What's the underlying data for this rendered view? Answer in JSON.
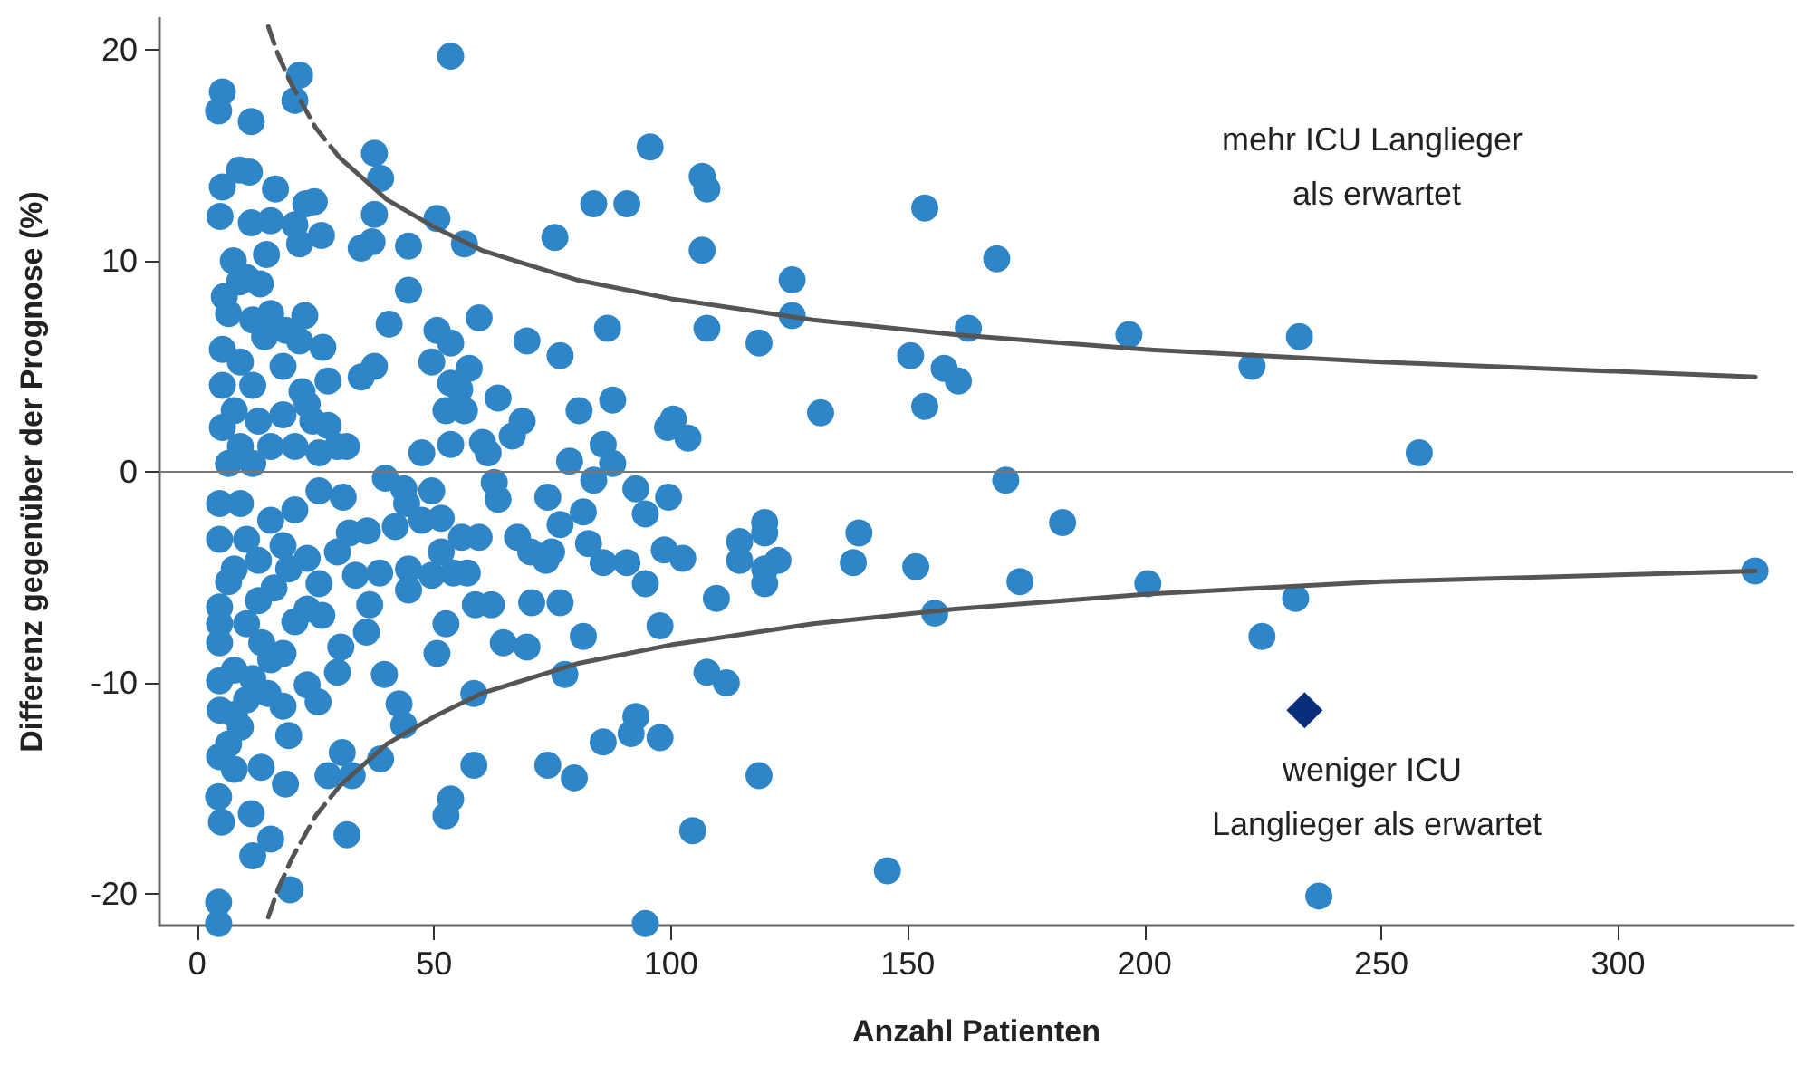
{
  "chart_data": {
    "type": "scatter",
    "xlabel": "Anzahl Patienten",
    "ylabel": "Differenz gegenüber der Prognose (%)",
    "xlim": [
      -8,
      337
    ],
    "ylim": [
      -21.5,
      21.5
    ],
    "xticks": [
      0,
      50,
      100,
      150,
      200,
      250,
      300
    ],
    "yticks": [
      -20,
      -10,
      0,
      10,
      20
    ],
    "grid": false,
    "marker": "circle",
    "ref_lines": [
      {
        "axis": "y",
        "value": 0,
        "color": "#777777"
      }
    ],
    "annotations": [
      "mehr ICU Langlieger als erwartet",
      "weniger ICU Langlieger als erwartet"
    ],
    "series": [
      {
        "color": "#2e86c8",
        "x": [
          95.6,
          106.6,
          107.6,
          83.7,
          90.7,
          153.6,
          75.5,
          106.6,
          168.8,
          125.6,
          125.6,
          86.6,
          107.6,
          162.8,
          196.7,
          76.6,
          118.6,
          150.6,
          157.7,
          160.7,
          153.6,
          80.6,
          87.7,
          131.6,
          100.5,
          99.3,
          103.6,
          85.7,
          87.7,
          78.6,
          170.7,
          83.7,
          74.0,
          92.6,
          99.5,
          94.6,
          81.5,
          76.6,
          119.8,
          119.8,
          139.7,
          182.7,
          82.6,
          74.8,
          73.6,
          114.5,
          114.5,
          85.7,
          90.7,
          98.6,
          102.5,
          119.8,
          122.6,
          119.8,
          138.5,
          151.7,
          173.7,
          200.7,
          76.6,
          94.6,
          109.6,
          155.7,
          97.7,
          81.5,
          77.6,
          107.6,
          111.7,
          92.6,
          91.6,
          97.7,
          85.7,
          74.0,
          79.6,
          118.6,
          104.6,
          145.7,
          94.6,
          232.7,
          222.7,
          258.0,
          328.9,
          231.9,
          224.8,
          236.8,
          53.5,
          21.6,
          20.6,
          5.3,
          4.5,
          11.4,
          37.4,
          38.7,
          37.4,
          50.6,
          56.4,
          8.9,
          11.0,
          5.3,
          16.5,
          4.8,
          11.4,
          15.5,
          22.9,
          24.7,
          20.6,
          21.6,
          26.2,
          34.6,
          36.9,
          44.6,
          7.6,
          14.6,
          44.6,
          13.3,
          5.7,
          8.9,
          22.7,
          40.5,
          50.6,
          53.5,
          59.5,
          69.6,
          26.5,
          21.6,
          49.5,
          57.4,
          37.4,
          34.6,
          27.6,
          53.5,
          55.4,
          63.5,
          68.6,
          66.5,
          52.5,
          56.4,
          27.6,
          47.4,
          53.5,
          60.2,
          61.4,
          31.5,
          25.7,
          18.1,
          22.1,
          39.7,
          43.6,
          49.5,
          44.2,
          62.7,
          63.5,
          41.8,
          47.4,
          51.5,
          51.5,
          55.8,
          59.5,
          67.6,
          70.4,
          35.9,
          33.4,
          38.5,
          44.6,
          44.6,
          49.5,
          54.1,
          57.0,
          58.7,
          62.1,
          70.6,
          52.5,
          50.6,
          64.6,
          69.6,
          36.4,
          35.7,
          30.3,
          29.6,
          39.5,
          42.6,
          43.6,
          38.7,
          58.4,
          58.4,
          53.5,
          52.5,
          30.6,
          27.6,
          32.7,
          31.6,
          18.6,
          13.5,
          19.6,
          15.5,
          11.7,
          11.4,
          4.5,
          4.5,
          5.1,
          4.5,
          7.8,
          9.1,
          4.8,
          10.4,
          19.3,
          23.2,
          25.5,
          18.1,
          14.9,
          20.6,
          18.1,
          15.5,
          4.7,
          4.7,
          7.8,
          11.7,
          13.6,
          6.6,
          4.7,
          10.4,
          12.9,
          16.2,
          23.2,
          25.7,
          26.3,
          29.6,
          23.2,
          32.1,
          30.8,
          25.7,
          20.6,
          15.5,
          9.1,
          4.7,
          4.7,
          10.4,
          18.1,
          7.8,
          12.9,
          19.3,
          4.7,
          7.8,
          6.6,
          4.7,
          5.3,
          6.6,
          10.4,
          11.7,
          15.5,
          14.2,
          9.1,
          5.3,
          11.7,
          7.8,
          5.3,
          12.9,
          18.1,
          23.2,
          9.1,
          15.5,
          20.6,
          6.6,
          11.7,
          18.7,
          24.4,
          29.6
        ],
        "values": [
          15.4,
          14.0,
          13.4,
          12.7,
          12.7,
          12.5,
          11.1,
          10.5,
          10.1,
          9.1,
          7.4,
          6.8,
          6.8,
          6.8,
          6.5,
          5.5,
          6.1,
          5.5,
          4.9,
          4.3,
          3.1,
          2.9,
          3.4,
          2.8,
          2.5,
          2.1,
          1.6,
          1.3,
          0.4,
          0.5,
          -0.4,
          -0.4,
          -1.2,
          -0.8,
          -1.2,
          -2.0,
          -1.9,
          -2.5,
          -2.4,
          -2.9,
          -2.9,
          -2.4,
          -3.4,
          -3.8,
          -4.2,
          -3.3,
          -4.2,
          -4.3,
          -4.3,
          -3.7,
          -4.1,
          -4.6,
          -4.2,
          -5.3,
          -4.3,
          -4.5,
          -5.2,
          -5.3,
          -6.2,
          -5.3,
          -6.0,
          -6.7,
          -7.3,
          -7.8,
          -9.6,
          -9.5,
          -10.0,
          -11.6,
          -12.4,
          -12.6,
          -12.8,
          -13.9,
          -14.5,
          -14.4,
          -17.0,
          -18.9,
          -21.4,
          6.4,
          5.0,
          0.9,
          -4.7,
          -6.0,
          -7.8,
          -20.1,
          19.7,
          18.8,
          17.6,
          18.0,
          17.1,
          16.6,
          15.1,
          13.9,
          12.2,
          12.0,
          10.8,
          14.3,
          14.2,
          13.5,
          13.4,
          12.1,
          11.8,
          11.9,
          12.7,
          12.8,
          11.7,
          10.8,
          11.2,
          10.6,
          10.9,
          10.7,
          10.0,
          10.3,
          8.6,
          8.9,
          8.3,
          9.0,
          7.4,
          7.0,
          6.7,
          6.1,
          7.3,
          6.2,
          5.9,
          6.2,
          5.2,
          4.9,
          5.0,
          4.5,
          4.3,
          4.2,
          3.9,
          3.5,
          2.4,
          1.7,
          2.9,
          2.9,
          2.2,
          0.9,
          1.3,
          1.4,
          0.9,
          1.2,
          0.9,
          5.0,
          3.8,
          -0.3,
          -0.8,
          -0.9,
          -1.5,
          -0.5,
          -1.3,
          -2.6,
          -2.3,
          -2.2,
          -3.8,
          -3.1,
          -3.1,
          -3.1,
          -3.8,
          -2.8,
          -4.9,
          -4.8,
          -4.6,
          -5.6,
          -4.9,
          -4.8,
          -4.8,
          -6.3,
          -6.3,
          -6.2,
          -7.2,
          -8.6,
          -8.1,
          -8.3,
          -6.3,
          -7.6,
          -8.3,
          -9.5,
          -9.6,
          -11.0,
          -12.0,
          -13.6,
          -10.5,
          -13.9,
          -15.5,
          -16.3,
          -13.3,
          -14.4,
          -14.4,
          -17.2,
          -14.8,
          -14.0,
          -19.8,
          -17.4,
          -18.2,
          -16.2,
          -20.4,
          -21.4,
          -16.6,
          -15.4,
          -14.1,
          -12.1,
          -11.3,
          -10.8,
          -12.5,
          -10.1,
          -10.9,
          -11.1,
          -10.5,
          -7.1,
          -8.6,
          -8.9,
          -9.9,
          -8.1,
          -9.4,
          -9.8,
          -8.1,
          -5.2,
          -6.4,
          -7.2,
          -6.1,
          -5.5,
          -6.5,
          -5.3,
          -6.8,
          -3.8,
          -4.1,
          -2.9,
          -1.2,
          -0.9,
          -1.8,
          -2.3,
          -1.5,
          -1.5,
          -3.2,
          -3.2,
          -3.5,
          -4.6,
          -4.2,
          -4.6,
          -7.2,
          -11.5,
          -12.9,
          -13.5,
          5.8,
          7.5,
          9.2,
          7.2,
          7.5,
          6.4,
          5.2,
          4.1,
          4.1,
          2.9,
          2.1,
          2.4,
          2.7,
          3.2,
          1.2,
          1.2,
          1.2,
          0.4,
          0.4,
          6.7,
          2.4,
          1.2
        ]
      },
      {
        "type": "scatter",
        "color": "#0a2f7a",
        "marker": "diamond",
        "x": [
          233.8
        ],
        "values": [
          -11.3
        ]
      },
      {
        "type": "line",
        "color": "#555555",
        "marker": "none",
        "line_style": "dashed",
        "x": [
          15,
          17,
          20,
          25,
          30
        ],
        "values": [
          21.1,
          19.8,
          18.3,
          16.3,
          14.9
        ]
      },
      {
        "type": "line",
        "color": "#555555",
        "marker": "none",
        "line_style": "solid",
        "x": [
          30,
          40,
          50,
          60,
          80,
          100,
          130,
          160,
          200,
          250,
          329
        ],
        "values": [
          14.9,
          12.9,
          11.6,
          10.5,
          9.1,
          8.2,
          7.2,
          6.5,
          5.8,
          5.2,
          4.5
        ]
      },
      {
        "type": "line",
        "color": "#555555",
        "marker": "none",
        "line_style": "dashed",
        "x": [
          15,
          17,
          20,
          25,
          30
        ],
        "values": [
          -21.1,
          -19.8,
          -18.3,
          -16.3,
          -14.9
        ]
      },
      {
        "type": "line",
        "color": "#555555",
        "marker": "none",
        "line_style": "solid",
        "x": [
          30,
          40,
          50,
          60,
          80,
          100,
          130,
          160,
          200,
          250,
          329
        ],
        "values": [
          -14.9,
          -12.9,
          -11.6,
          -10.5,
          -9.1,
          -8.2,
          -7.2,
          -6.5,
          -5.8,
          -5.2,
          -4.7
        ]
      }
    ]
  }
}
